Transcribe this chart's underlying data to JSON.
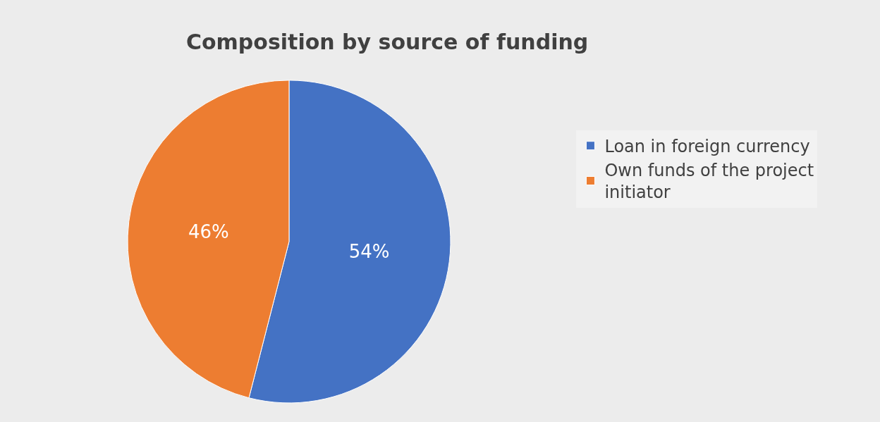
{
  "chart_data": {
    "type": "pie",
    "title": "Composition by source of funding",
    "categories": [
      "Loan in foreign currency",
      "Own funds of the project initiator"
    ],
    "values": [
      54,
      46
    ],
    "colors": [
      "#4472c4",
      "#ed7d31"
    ],
    "value_labels": [
      "54%",
      "46%"
    ],
    "legend": "right"
  }
}
